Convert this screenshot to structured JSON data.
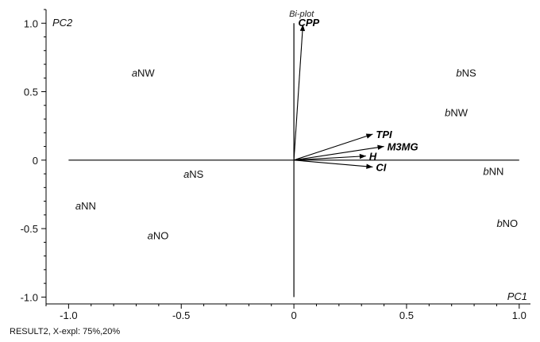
{
  "chart_data": {
    "type": "scatter",
    "title": "Bi-plot",
    "xlabel": "PC1",
    "ylabel": "PC2",
    "xlim": [
      -1.1,
      1.05
    ],
    "ylim": [
      -1.05,
      1.1
    ],
    "xticks": [
      -1.0,
      -0.5,
      0,
      0.5,
      1.0
    ],
    "xtick_labels": [
      "-1.0",
      "-0.5",
      "0",
      "0.5",
      "1.0"
    ],
    "yticks": [
      -1.0,
      -0.5,
      0,
      0.5,
      1.0
    ],
    "ytick_labels": [
      "-1.0",
      "-0.5",
      "0",
      "0.5",
      "1.0"
    ],
    "grid": false,
    "points": [
      {
        "prefix": "a",
        "label": "NW",
        "x": -0.72,
        "y": 0.64
      },
      {
        "prefix": "a",
        "label": "NS",
        "x": -0.49,
        "y": -0.1
      },
      {
        "prefix": "a",
        "label": "NN",
        "x": -0.97,
        "y": -0.33
      },
      {
        "prefix": "a",
        "label": "NO",
        "x": -0.65,
        "y": -0.55
      },
      {
        "prefix": "b",
        "label": "NS",
        "x": 0.72,
        "y": 0.64
      },
      {
        "prefix": "b",
        "label": "NW",
        "x": 0.67,
        "y": 0.35
      },
      {
        "prefix": "b",
        "label": "NN",
        "x": 0.84,
        "y": -0.08
      },
      {
        "prefix": "b",
        "label": "NO",
        "x": 0.9,
        "y": -0.46
      }
    ],
    "vectors": [
      {
        "label": "CPP",
        "x": 0.04,
        "y": 0.99
      },
      {
        "label": "TPI",
        "x": 0.35,
        "y": 0.19
      },
      {
        "label": "M3MG",
        "x": 0.4,
        "y": 0.1
      },
      {
        "label": "H",
        "x": 0.32,
        "y": 0.03
      },
      {
        "label": "CI",
        "x": 0.35,
        "y": -0.05
      }
    ]
  },
  "footer": "RESULT2, X-expl: 75%,20%"
}
